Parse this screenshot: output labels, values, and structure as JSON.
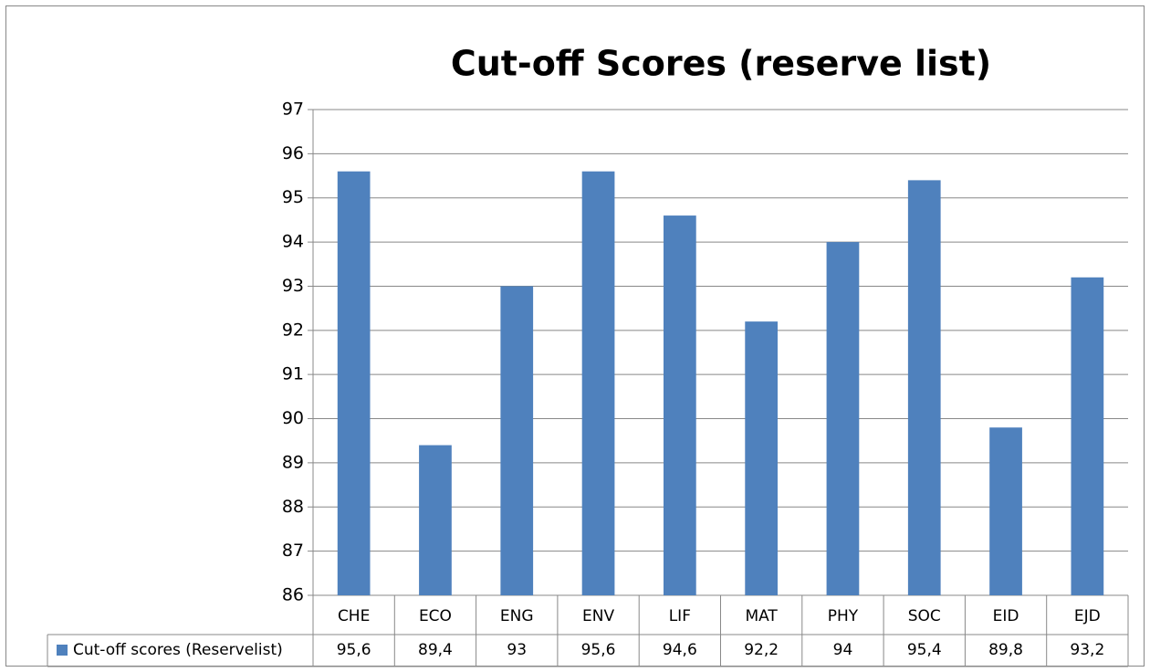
{
  "chart_data": {
    "type": "bar",
    "title": "Cut-off Scores (reserve list)",
    "categories": [
      "CHE",
      "ECO",
      "ENG",
      "ENV",
      "LIF",
      "MAT",
      "PHY",
      "SOC",
      "EID",
      "EJD"
    ],
    "series": [
      {
        "name": "Cut-off scores (Reservelist)",
        "color": "#4f81bd",
        "values": [
          95.6,
          89.4,
          93,
          95.6,
          94.6,
          92.2,
          94,
          95.4,
          89.8,
          93.2
        ],
        "value_labels": [
          "95,6",
          "89,4",
          "93",
          "95,6",
          "94,6",
          "92,2",
          "94",
          "95,4",
          "89,8",
          "93,2"
        ]
      }
    ],
    "ylim": [
      86,
      97
    ],
    "yticks": [
      86,
      87,
      88,
      89,
      90,
      91,
      92,
      93,
      94,
      95,
      96,
      97
    ],
    "grid": true
  }
}
